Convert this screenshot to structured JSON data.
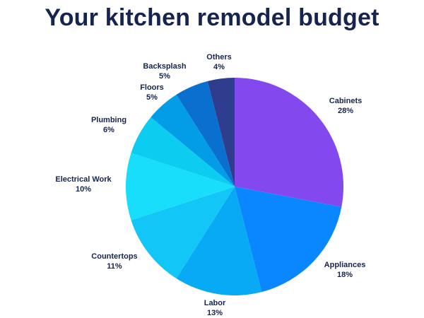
{
  "title": "Your kitchen remodel budget",
  "chart_data": {
    "type": "pie",
    "title": "Your kitchen remodel budget",
    "start_angle_deg": 0,
    "direction": "clockwise",
    "slices": [
      {
        "label": "Cabinets",
        "value": 28,
        "value_label": "28%",
        "color": "#8349ef"
      },
      {
        "label": "Appliances",
        "value": 18,
        "value_label": "18%",
        "color": "#0a87ff"
      },
      {
        "label": "Labor",
        "value": 13,
        "value_label": "13%",
        "color": "#08aaf6"
      },
      {
        "label": "Countertops",
        "value": 11,
        "value_label": "11%",
        "color": "#12c7f7"
      },
      {
        "label": "Electrical Work",
        "value": 10,
        "value_label": "10%",
        "color": "#18defc"
      },
      {
        "label": "Plumbing",
        "value": 6,
        "value_label": "6%",
        "color": "#0ccdf0"
      },
      {
        "label": "Floors",
        "value": 5,
        "value_label": "5%",
        "color": "#039ce6"
      },
      {
        "label": "Backsplash",
        "value": 5,
        "value_label": "5%",
        "color": "#0a70d0"
      },
      {
        "label": "Others",
        "value": 4,
        "value_label": "4%",
        "color": "#2f3d8f"
      }
    ]
  }
}
